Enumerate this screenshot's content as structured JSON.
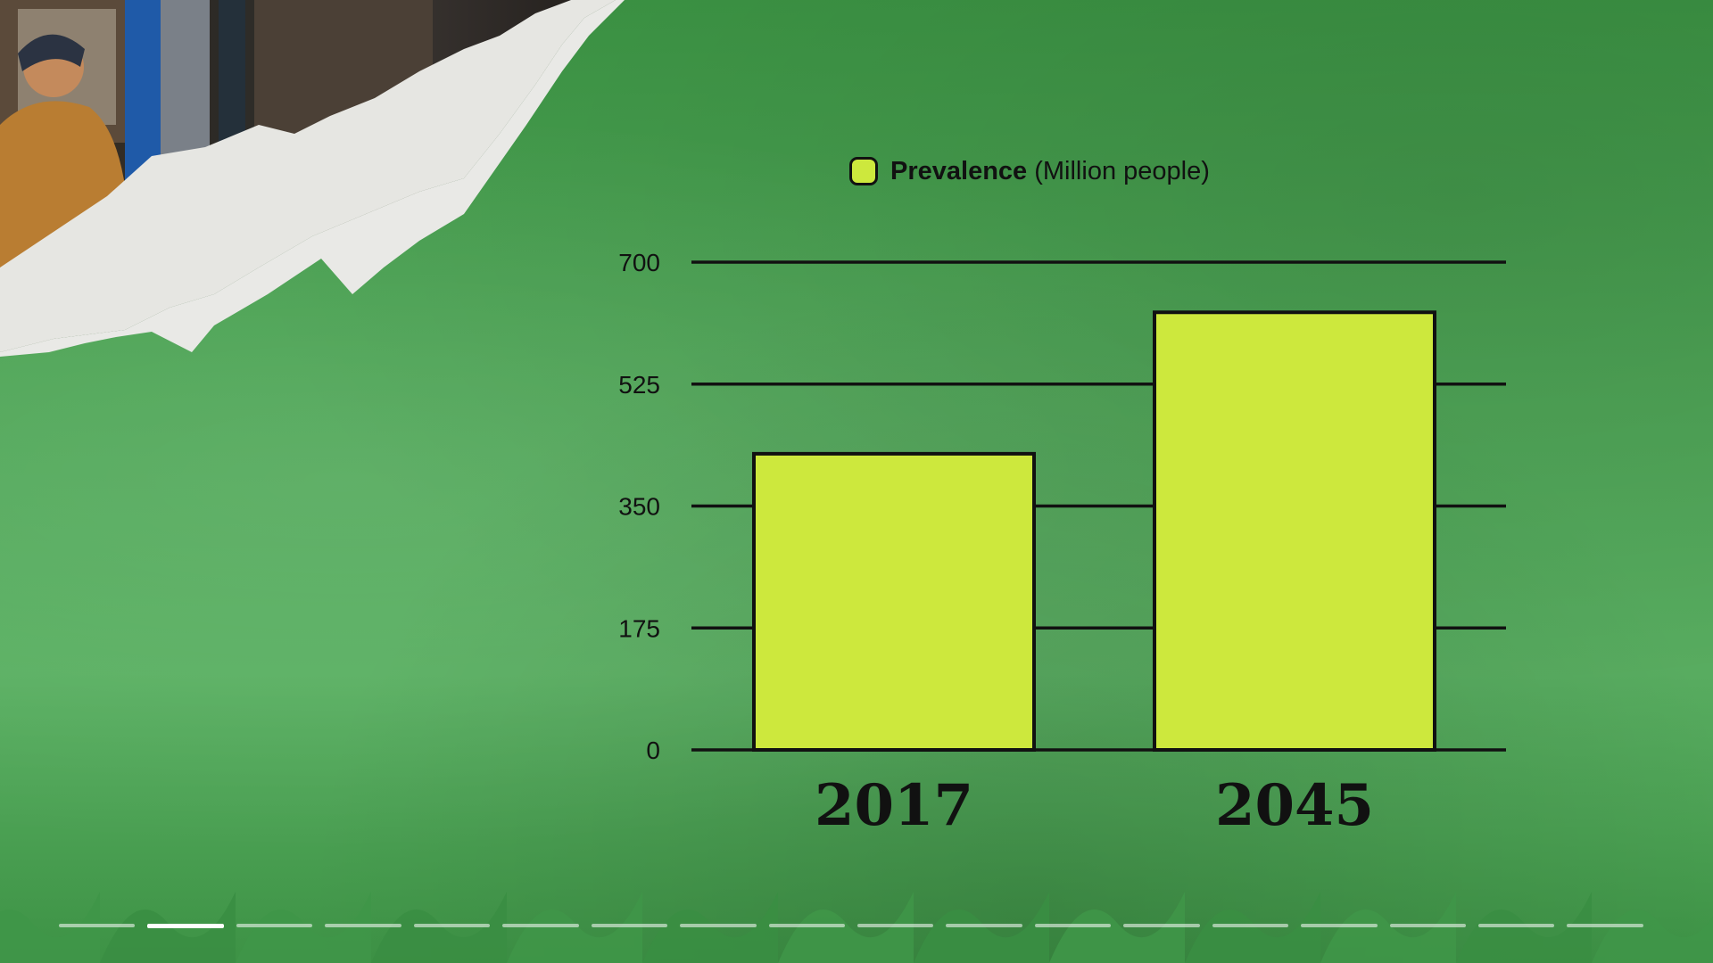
{
  "chart_data": {
    "type": "bar",
    "categories": [
      "2017",
      "2045"
    ],
    "values": [
      425,
      628
    ],
    "series": [
      {
        "name": "Prevalence",
        "values": [
          425,
          628
        ]
      }
    ],
    "legend": {
      "bold": "Prevalence",
      "rest": "(Million people)",
      "placement": "top-center"
    },
    "title": "",
    "xlabel": "",
    "ylabel": "",
    "ylim": [
      0,
      700
    ],
    "yticks": [
      0,
      175,
      350,
      525,
      700
    ],
    "grid": true,
    "bar_color": "#cde83d",
    "outline_color": "#111111"
  },
  "progress": {
    "segments": 18,
    "active_index": 1
  }
}
